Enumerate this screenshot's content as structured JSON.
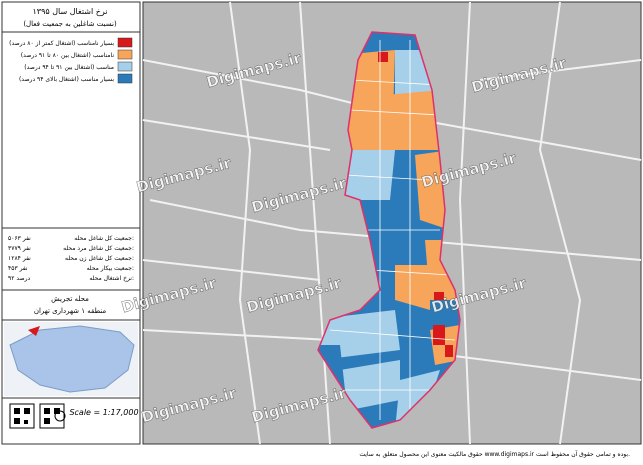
{
  "title": [
    "نرخ اشتغال سال ۱۳۹۵",
    "(نسبت شاغلین به جمعیت فعال)"
  ],
  "legend": [
    {
      "label": "بسیار نامناسب (اشتغال کمتر از ۸۰ درصد)",
      "color": "#d7191c"
    },
    {
      "label": "نامناسب (اشتغال بین ۸۰ تا ۹۱ درصد)",
      "color": "#f6a55a"
    },
    {
      "label": "مناسب (اشتغال بین ۹۱ تا ۹۴ درصد)",
      "color": "#a6d0ea"
    },
    {
      "label": "بسیار مناسب (اشتغال بالای ۹۴ درصد)",
      "color": "#2b7bba"
    }
  ],
  "stats": [
    {
      "label": "جمعیت کل شاغل محله:",
      "value": "۵۰۶۳ نفر"
    },
    {
      "label": "جمعیت کل شاغل مرد محله:",
      "value": "۳۷۷۹ نفر"
    },
    {
      "label": "جمعیت کل شاغل زن محله:",
      "value": "۱۲۸۴ نفر"
    },
    {
      "label": "جمعیت بیکار محله:",
      "value": "۴۵۳ نفر"
    },
    {
      "label": "نرخ اشتغال محله:",
      "value": "۹۲ درصد"
    }
  ],
  "location": [
    "محله تجریش",
    "منطقه ۱ شهرداری تهران"
  ],
  "scale": "Scale = 1:17,000",
  "watermark": "Digimaps.ir",
  "footer": "حقوق مالکیت معنوی این محصول متعلق به سایت www.digimaps.ir بوده و تمامی حقوق آن محفوظ است."
}
